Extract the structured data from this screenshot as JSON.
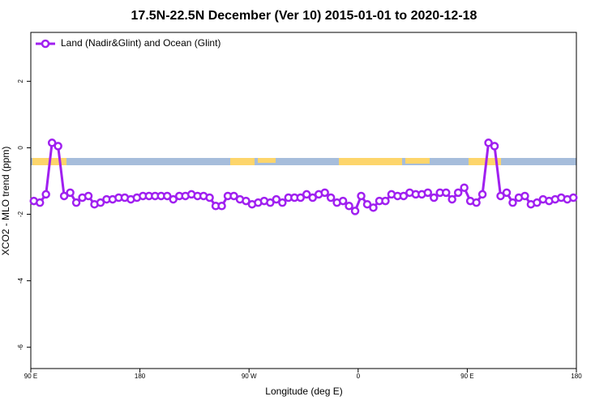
{
  "chart_data": {
    "type": "line",
    "title": "17.5N-22.5N December (Ver 10)   2015-01-01 to 2020-12-18",
    "x_label": "Longitude (deg E)",
    "y_label": "XCO2 - MLO trend (ppm)",
    "xlim": [
      90,
      540
    ],
    "ylim": [
      -6.64,
      3.47
    ],
    "xticks": [
      {
        "value": 90,
        "label": "90 E"
      },
      180,
      {
        "value": 270,
        "label": "90 W"
      },
      {
        "value": 360,
        "label": "0"
      },
      {
        "value": 450,
        "label": "90 E"
      },
      {
        "value": 540,
        "label": "180"
      }
    ],
    "yticks": [
      2,
      0,
      -2,
      -4,
      -6
    ],
    "legend": "top-left",
    "x": [
      92.5,
      97.5,
      102.5,
      107.5,
      112.5,
      117.5,
      122.5,
      127.5,
      132.5,
      137.5,
      142.5,
      147.5,
      152.5,
      157.5,
      162.5,
      167.5,
      172.5,
      177.5,
      182.5,
      187.5,
      192.5,
      197.5,
      202.5,
      207.5,
      212.5,
      217.5,
      222.5,
      227.5,
      232.5,
      237.5,
      242.5,
      247.5,
      252.5,
      257.5,
      262.5,
      267.5,
      272.5,
      277.5,
      282.5,
      287.5,
      292.5,
      297.5,
      302.5,
      307.5,
      312.5,
      317.5,
      322.5,
      327.5,
      332.5,
      337.5,
      342.5,
      347.5,
      352.5,
      357.5,
      362.5,
      367.5,
      372.5,
      377.5,
      382.5,
      387.5,
      392.5,
      397.5,
      402.5,
      407.5,
      412.5,
      417.5,
      422.5,
      427.5,
      432.5,
      437.5,
      442.5,
      447.5,
      452.5,
      457.5,
      462.5,
      467.5,
      472.5,
      477.5,
      482.5,
      487.5,
      492.5,
      497.5,
      502.5,
      507.5,
      512.5,
      517.5,
      522.5,
      527.5,
      532.5,
      537.5
    ],
    "series": [
      {
        "name": "Land (Nadir&Glint) and Ocean (Glint)",
        "color": "#a020f0",
        "values": [
          -1.6,
          -1.65,
          -1.4,
          0.15,
          0.05,
          -1.45,
          -1.35,
          -1.65,
          -1.5,
          -1.45,
          -1.7,
          -1.65,
          -1.55,
          -1.55,
          -1.5,
          -1.5,
          -1.55,
          -1.5,
          -1.45,
          -1.45,
          -1.45,
          -1.45,
          -1.45,
          -1.55,
          -1.45,
          -1.45,
          -1.4,
          -1.45,
          -1.45,
          -1.5,
          -1.75,
          -1.75,
          -1.45,
          -1.45,
          -1.55,
          -1.6,
          -1.7,
          -1.65,
          -1.6,
          -1.65,
          -1.55,
          -1.65,
          -1.5,
          -1.5,
          -1.5,
          -1.4,
          -1.5,
          -1.4,
          -1.35,
          -1.5,
          -1.65,
          -1.6,
          -1.75,
          -1.9,
          -1.45,
          -1.7,
          -1.8,
          -1.6,
          -1.6,
          -1.4,
          -1.45,
          -1.45,
          -1.35,
          -1.4,
          -1.4,
          -1.35,
          -1.5,
          -1.35,
          -1.35,
          -1.55,
          -1.35,
          -1.2,
          -1.6,
          -1.65,
          -1.4,
          0.15,
          0.05,
          -1.45,
          -1.35,
          -1.65,
          -1.5,
          -1.45,
          -1.7,
          -1.65,
          -1.55,
          -1.6,
          -1.55,
          -1.5,
          -1.55,
          -1.5
        ]
      }
    ]
  }
}
